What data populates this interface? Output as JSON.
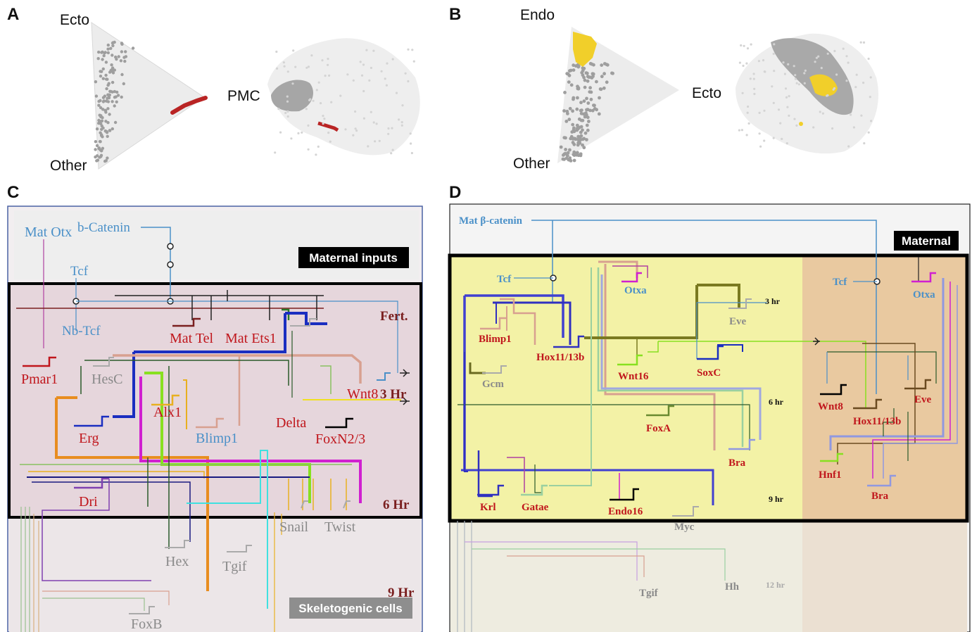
{
  "panelA": {
    "letter": "A",
    "corners": [
      "Ecto",
      "PMC",
      "Other"
    ]
  },
  "panelB": {
    "letter": "B",
    "corners": [
      "Endo",
      "Ecto",
      "Other"
    ]
  },
  "panelC": {
    "letter": "C",
    "maternal_box": "Maternal inputs",
    "skeletogenic_box": "Skeletogenic cells",
    "time_marks": [
      "Fert.",
      "3 Hr",
      "6 Hr",
      "9 Hr"
    ],
    "genes": {
      "mat_otx": "Mat Otx",
      "b_catenin": "b-Catenin",
      "tcf": "Tcf",
      "nb_tcf": "Nb-Tcf",
      "mat_tel": "Mat Tel",
      "mat_ets1": "Mat Ets1",
      "pmar1": "Pmar1",
      "hesc": "HesC",
      "wnt8": "Wnt8",
      "alx1": "Alx1",
      "erg": "Erg",
      "blimp1": "Blimp1",
      "delta": "Delta",
      "foxn23": "FoxN2/3",
      "dri": "Dri",
      "snail": "Snail",
      "twist": "Twist",
      "hex": "Hex",
      "tgif": "Tgif",
      "foxb": "FoxB"
    }
  },
  "panelD": {
    "letter": "D",
    "maternal_box": "Maternal",
    "time_marks": [
      "3 hr",
      "6 hr",
      "9 hr",
      "12 hr"
    ],
    "genes": {
      "mat_bcat": "Mat β-catenin",
      "tcf_left": "Tcf",
      "tcf_right": "Tcf",
      "otxa_left": "Otxa",
      "otxa_right": "Otxa",
      "eve_left": "Eve",
      "eve_right": "Eve",
      "blimp1": "Blimp1",
      "hox_left": "Hox11/13b",
      "hox_right": "Hox11/13b",
      "gcm": "Gcm",
      "wnt16": "Wnt16",
      "soxc": "SoxC",
      "wnt8": "Wnt8",
      "foxa": "FoxA",
      "bra_left": "Bra",
      "bra_right": "Bra",
      "hnf1": "Hnf1",
      "krl": "Krl",
      "gatae": "Gatae",
      "endo16": "Endo16",
      "myc": "Myc",
      "tgif": "Tgif",
      "hh": "Hh"
    }
  },
  "colors": {
    "red_gene": "#c0161c",
    "blue_label": "#4a90c8",
    "gray_label": "#8a8a8a",
    "maroon": "#7a1f1f",
    "yellow_region": "#f3f2a6",
    "tan_region": "#e9c9a0",
    "c_region": "#e6d6dc"
  }
}
